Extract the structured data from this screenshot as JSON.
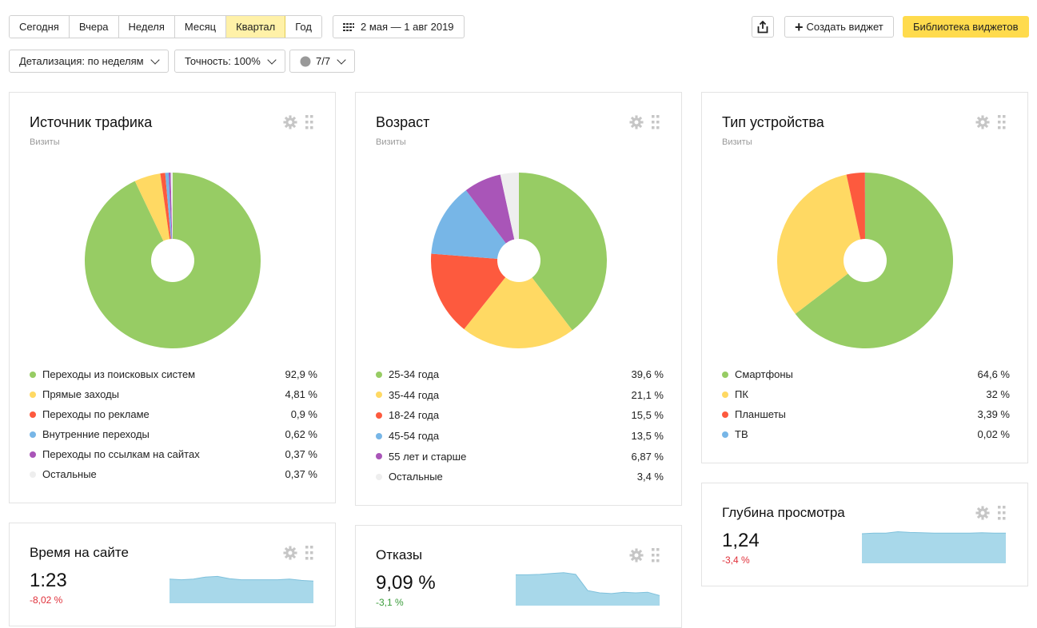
{
  "period_tabs": [
    {
      "label": "Сегодня",
      "active": false
    },
    {
      "label": "Вчера",
      "active": false
    },
    {
      "label": "Неделя",
      "active": false
    },
    {
      "label": "Месяц",
      "active": false
    },
    {
      "label": "Квартал",
      "active": true
    },
    {
      "label": "Год",
      "active": false
    }
  ],
  "date_range": "2 мая — 1 авг 2019",
  "toolbar": {
    "create_widget": "Создать виджет",
    "library": "Библиотека виджетов",
    "detail": "Детализация: по неделям",
    "accuracy": "Точность: 100%",
    "segments": "7/7"
  },
  "colors": {
    "green": "#97cc64",
    "yellow": "#ffd963",
    "red": "#fd5a3e",
    "blue": "#77b6e7",
    "purple": "#a955b8",
    "gray": "#eeeeee",
    "accent": "#ffdb4d",
    "negative": "#e0303a",
    "positive": "#3a9c3a",
    "spark": "#a8d8ea"
  },
  "widgets": {
    "traffic": {
      "title": "Источник трафика",
      "subtitle": "Визиты",
      "items": [
        {
          "label": "Переходы из поисковых систем",
          "value": "92,9 %",
          "pct": 92.9,
          "color": "#97cc64"
        },
        {
          "label": "Прямые заходы",
          "value": "4,81 %",
          "pct": 4.81,
          "color": "#ffd963"
        },
        {
          "label": "Переходы по рекламе",
          "value": "0,9 %",
          "pct": 0.9,
          "color": "#fd5a3e"
        },
        {
          "label": "Внутренние переходы",
          "value": "0,62 %",
          "pct": 0.62,
          "color": "#77b6e7"
        },
        {
          "label": "Переходы по ссылкам на сайтах",
          "value": "0,37 %",
          "pct": 0.37,
          "color": "#a955b8"
        },
        {
          "label": "Остальные",
          "value": "0,37 %",
          "pct": 0.37,
          "color": "#eeeeee"
        }
      ]
    },
    "age": {
      "title": "Возраст",
      "subtitle": "Визиты",
      "items": [
        {
          "label": "25-34 года",
          "value": "39,6 %",
          "pct": 39.6,
          "color": "#97cc64"
        },
        {
          "label": "35-44 года",
          "value": "21,1 %",
          "pct": 21.1,
          "color": "#ffd963"
        },
        {
          "label": "18-24 года",
          "value": "15,5 %",
          "pct": 15.5,
          "color": "#fd5a3e"
        },
        {
          "label": "45-54 года",
          "value": "13,5 %",
          "pct": 13.5,
          "color": "#77b6e7"
        },
        {
          "label": "55 лет и старше",
          "value": "6,87 %",
          "pct": 6.87,
          "color": "#a955b8"
        },
        {
          "label": "Остальные",
          "value": "3,4 %",
          "pct": 3.4,
          "color": "#eeeeee"
        }
      ]
    },
    "device": {
      "title": "Тип устройства",
      "subtitle": "Визиты",
      "items": [
        {
          "label": "Смартфоны",
          "value": "64,6 %",
          "pct": 64.6,
          "color": "#97cc64"
        },
        {
          "label": "ПК",
          "value": "32 %",
          "pct": 32,
          "color": "#ffd963"
        },
        {
          "label": "Планшеты",
          "value": "3,39 %",
          "pct": 3.39,
          "color": "#fd5a3e"
        },
        {
          "label": "ТВ",
          "value": "0,02 %",
          "pct": 0.02,
          "color": "#77b6e7"
        }
      ]
    },
    "time": {
      "title": "Время на сайте",
      "value": "1:23",
      "delta": "-8,02 %",
      "trend": "negative",
      "series": [
        0.72,
        0.7,
        0.72,
        0.78,
        0.8,
        0.73,
        0.7,
        0.7,
        0.7,
        0.7,
        0.72,
        0.68,
        0.66
      ]
    },
    "bounce": {
      "title": "Отказы",
      "value": "9,09 %",
      "delta": "-3,1 %",
      "trend": "positive",
      "series": [
        0.92,
        0.92,
        0.93,
        0.96,
        0.98,
        0.93,
        0.45,
        0.38,
        0.36,
        0.4,
        0.38,
        0.4,
        0.3
      ]
    },
    "depth": {
      "title": "Глубина просмотра",
      "value": "1,24",
      "delta": "-3,4 %",
      "trend": "negative",
      "series": [
        0.88,
        0.9,
        0.9,
        0.94,
        0.92,
        0.91,
        0.9,
        0.9,
        0.9,
        0.9,
        0.91,
        0.9,
        0.9
      ]
    }
  }
}
